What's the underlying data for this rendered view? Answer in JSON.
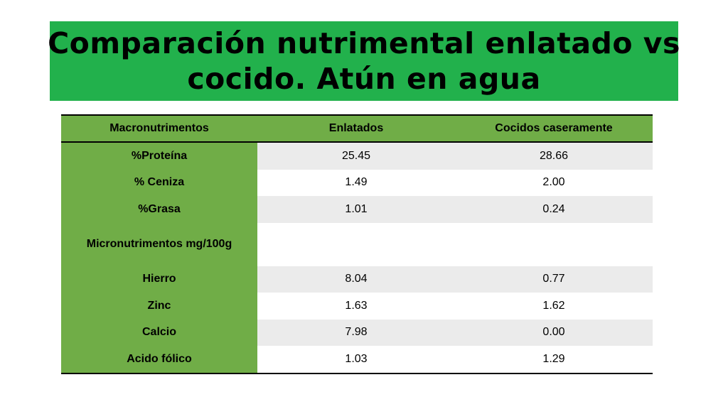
{
  "title": {
    "line1": "Comparación nutrimental enlatado vs",
    "line2": "cocido. Atún en agua"
  },
  "table": {
    "headers": [
      "Macronutrimentos",
      "Enlatados",
      "Cocidos caseramente"
    ],
    "rows": [
      {
        "label": "%Proteína",
        "enlatados": "25.45",
        "cocidos": "28.66"
      },
      {
        "label": "% Ceniza",
        "enlatados": "1.49",
        "cocidos": "2.00"
      },
      {
        "label": "%Grasa",
        "enlatados": "1.01",
        "cocidos": "0.24"
      },
      {
        "label": "Micronutrimentos mg/100g",
        "enlatados": "",
        "cocidos": ""
      },
      {
        "label": "Hierro",
        "enlatados": "8.04",
        "cocidos": "0.77"
      },
      {
        "label": "Zinc",
        "enlatados": "1.63",
        "cocidos": "1.62"
      },
      {
        "label": "Calcio",
        "enlatados": "7.98",
        "cocidos": "0.00"
      },
      {
        "label": "Acido fólico",
        "enlatados": "1.03",
        "cocidos": "1.29"
      }
    ]
  },
  "colors": {
    "title_background": "#22b14c",
    "label_column": "#70ad47",
    "shaded_row": "#ebebeb"
  }
}
